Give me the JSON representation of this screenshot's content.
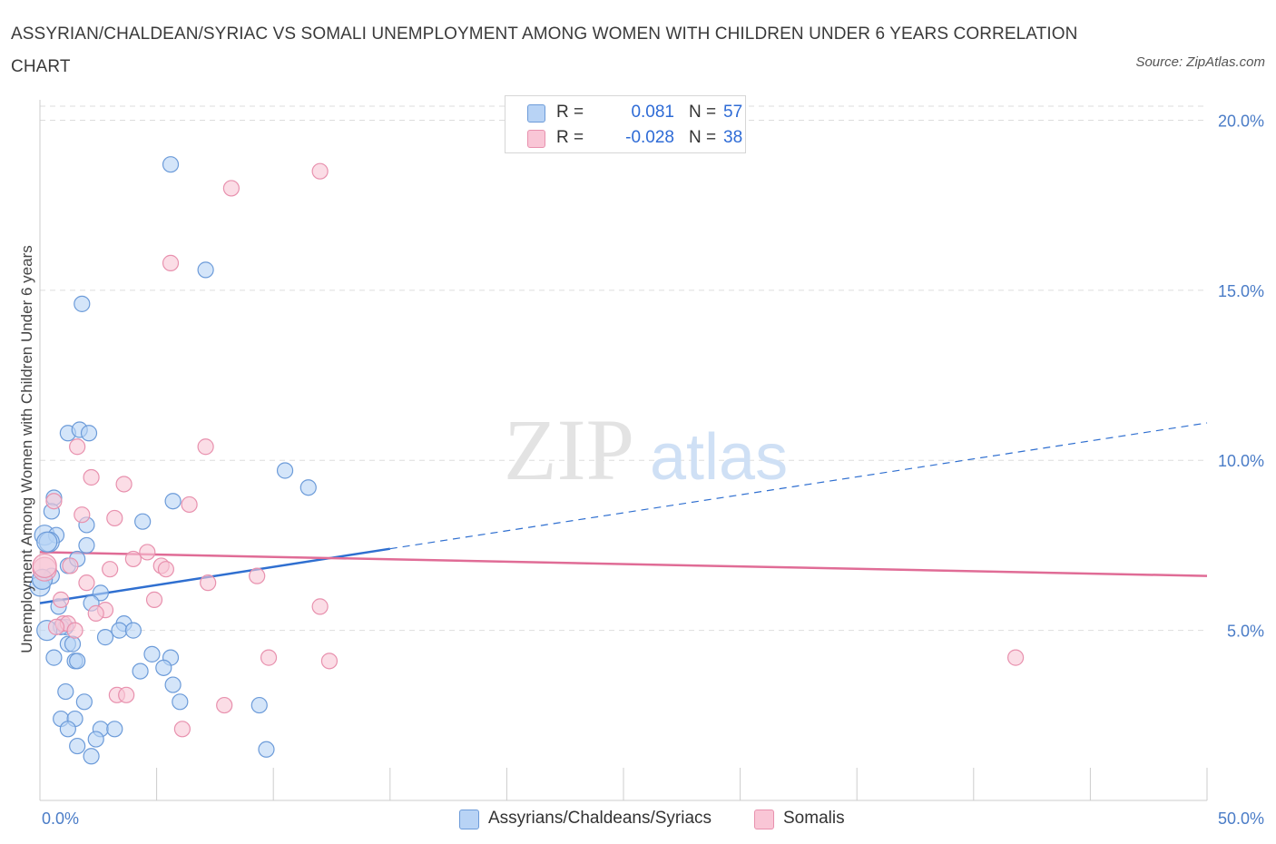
{
  "header": {
    "title": "ASSYRIAN/CHALDEAN/SYRIAC VS SOMALI UNEMPLOYMENT AMONG WOMEN WITH CHILDREN UNDER 6 YEARS CORRELATION CHART",
    "source": "Source: ZipAtlas.com"
  },
  "watermark": {
    "zip": "ZIP",
    "atlas": "atlas"
  },
  "legend_top": {
    "rows": [
      {
        "r_label": "R =",
        "r_value": "0.081",
        "n_label": "N =",
        "n_value": "57"
      },
      {
        "r_label": "R =",
        "r_value": "-0.028",
        "n_label": "N =",
        "n_value": "38"
      }
    ]
  },
  "legend_bottom": {
    "items": [
      {
        "label": "Assyrians/Chaldeans/Syriacs"
      },
      {
        "label": "Somalis"
      }
    ]
  },
  "colors": {
    "blue_fill": "#b8d3f5",
    "blue_stroke": "#6c9bd9",
    "blue_line": "#2f6fd0",
    "pink_fill": "#f9c6d6",
    "pink_stroke": "#e891ae",
    "pink_line": "#e06c96",
    "grid": "#dddddd",
    "axis_text": "#4a7cc7"
  },
  "chart_data": {
    "type": "scatter",
    "title": "ASSYRIAN/CHALDEAN/SYRIAC VS SOMALI UNEMPLOYMENT AMONG WOMEN WITH CHILDREN UNDER 6 YEARS CORRELATION CHART",
    "xlabel": "",
    "ylabel": "Unemployment Among Women with Children Under 6 years",
    "xlim": [
      0,
      50
    ],
    "ylim": [
      0,
      20.6
    ],
    "x_tick_labels": [
      "0.0%",
      "50.0%"
    ],
    "y_ticks": [
      5,
      10,
      15,
      20
    ],
    "y_tick_labels": [
      "5.0%",
      "10.0%",
      "15.0%",
      "20.0%"
    ],
    "grid": true,
    "legend_position": "top-center",
    "series": [
      {
        "name": "Assyrians/Chaldeans/Syriacs",
        "r": 0.081,
        "n": 57,
        "points": [
          [
            5.6,
            18.7
          ],
          [
            7.1,
            15.6
          ],
          [
            1.8,
            14.6
          ],
          [
            1.2,
            10.8
          ],
          [
            1.7,
            10.9
          ],
          [
            2.1,
            10.8
          ],
          [
            10.5,
            9.7
          ],
          [
            11.5,
            9.2
          ],
          [
            0.6,
            8.9
          ],
          [
            5.7,
            8.8
          ],
          [
            0.5,
            8.5
          ],
          [
            4.4,
            8.2
          ],
          [
            2.0,
            8.1
          ],
          [
            0.2,
            7.8
          ],
          [
            0.7,
            7.8
          ],
          [
            0.4,
            7.6
          ],
          [
            1.2,
            6.9
          ],
          [
            2.0,
            7.5
          ],
          [
            1.6,
            7.1
          ],
          [
            0.5,
            6.6
          ],
          [
            0.1,
            6.5
          ],
          [
            0.0,
            6.3
          ],
          [
            2.6,
            6.1
          ],
          [
            0.8,
            5.7
          ],
          [
            2.2,
            5.8
          ],
          [
            1.1,
            5.1
          ],
          [
            0.9,
            5.1
          ],
          [
            0.3,
            5.0
          ],
          [
            3.6,
            5.2
          ],
          [
            3.4,
            5.0
          ],
          [
            4.0,
            5.0
          ],
          [
            2.8,
            4.8
          ],
          [
            1.2,
            4.6
          ],
          [
            1.4,
            4.6
          ],
          [
            1.5,
            4.1
          ],
          [
            0.6,
            4.2
          ],
          [
            1.6,
            4.1
          ],
          [
            4.8,
            4.3
          ],
          [
            5.6,
            4.2
          ],
          [
            4.3,
            3.8
          ],
          [
            5.3,
            3.9
          ],
          [
            5.7,
            3.4
          ],
          [
            1.1,
            3.2
          ],
          [
            1.9,
            2.9
          ],
          [
            6.0,
            2.9
          ],
          [
            9.4,
            2.8
          ],
          [
            0.9,
            2.4
          ],
          [
            1.5,
            2.4
          ],
          [
            1.2,
            2.1
          ],
          [
            2.6,
            2.1
          ],
          [
            3.2,
            2.1
          ],
          [
            2.4,
            1.8
          ],
          [
            1.6,
            1.6
          ],
          [
            9.7,
            1.5
          ],
          [
            2.2,
            1.3
          ],
          [
            0.1,
            6.5
          ],
          [
            0.3,
            7.6
          ]
        ],
        "trend": {
          "x0": 0,
          "y0": 5.8,
          "x1": 15,
          "y1": 7.4,
          "dashed_to_x": 50,
          "dashed_to_y": 11.1
        }
      },
      {
        "name": "Somalis",
        "r": -0.028,
        "n": 38,
        "points": [
          [
            12.0,
            18.5
          ],
          [
            8.2,
            18.0
          ],
          [
            5.6,
            15.8
          ],
          [
            1.6,
            10.4
          ],
          [
            7.1,
            10.4
          ],
          [
            2.2,
            9.5
          ],
          [
            3.6,
            9.3
          ],
          [
            0.6,
            8.8
          ],
          [
            6.4,
            8.7
          ],
          [
            1.8,
            8.4
          ],
          [
            3.2,
            8.3
          ],
          [
            0.2,
            6.8
          ],
          [
            1.3,
            6.9
          ],
          [
            3.0,
            6.8
          ],
          [
            4.0,
            7.1
          ],
          [
            4.6,
            7.3
          ],
          [
            5.2,
            6.9
          ],
          [
            5.4,
            6.8
          ],
          [
            2.0,
            6.4
          ],
          [
            7.2,
            6.4
          ],
          [
            9.3,
            6.6
          ],
          [
            0.9,
            5.9
          ],
          [
            4.9,
            5.9
          ],
          [
            12.0,
            5.7
          ],
          [
            2.8,
            5.6
          ],
          [
            2.4,
            5.5
          ],
          [
            1.0,
            5.2
          ],
          [
            1.2,
            5.2
          ],
          [
            1.5,
            5.0
          ],
          [
            0.7,
            5.1
          ],
          [
            9.8,
            4.2
          ],
          [
            12.4,
            4.1
          ],
          [
            41.8,
            4.2
          ],
          [
            3.3,
            3.1
          ],
          [
            3.7,
            3.1
          ],
          [
            7.9,
            2.8
          ],
          [
            6.1,
            2.1
          ],
          [
            0.2,
            6.9
          ]
        ],
        "trend": {
          "x0": 0,
          "y0": 7.3,
          "x1": 50,
          "y1": 6.6
        }
      }
    ]
  }
}
